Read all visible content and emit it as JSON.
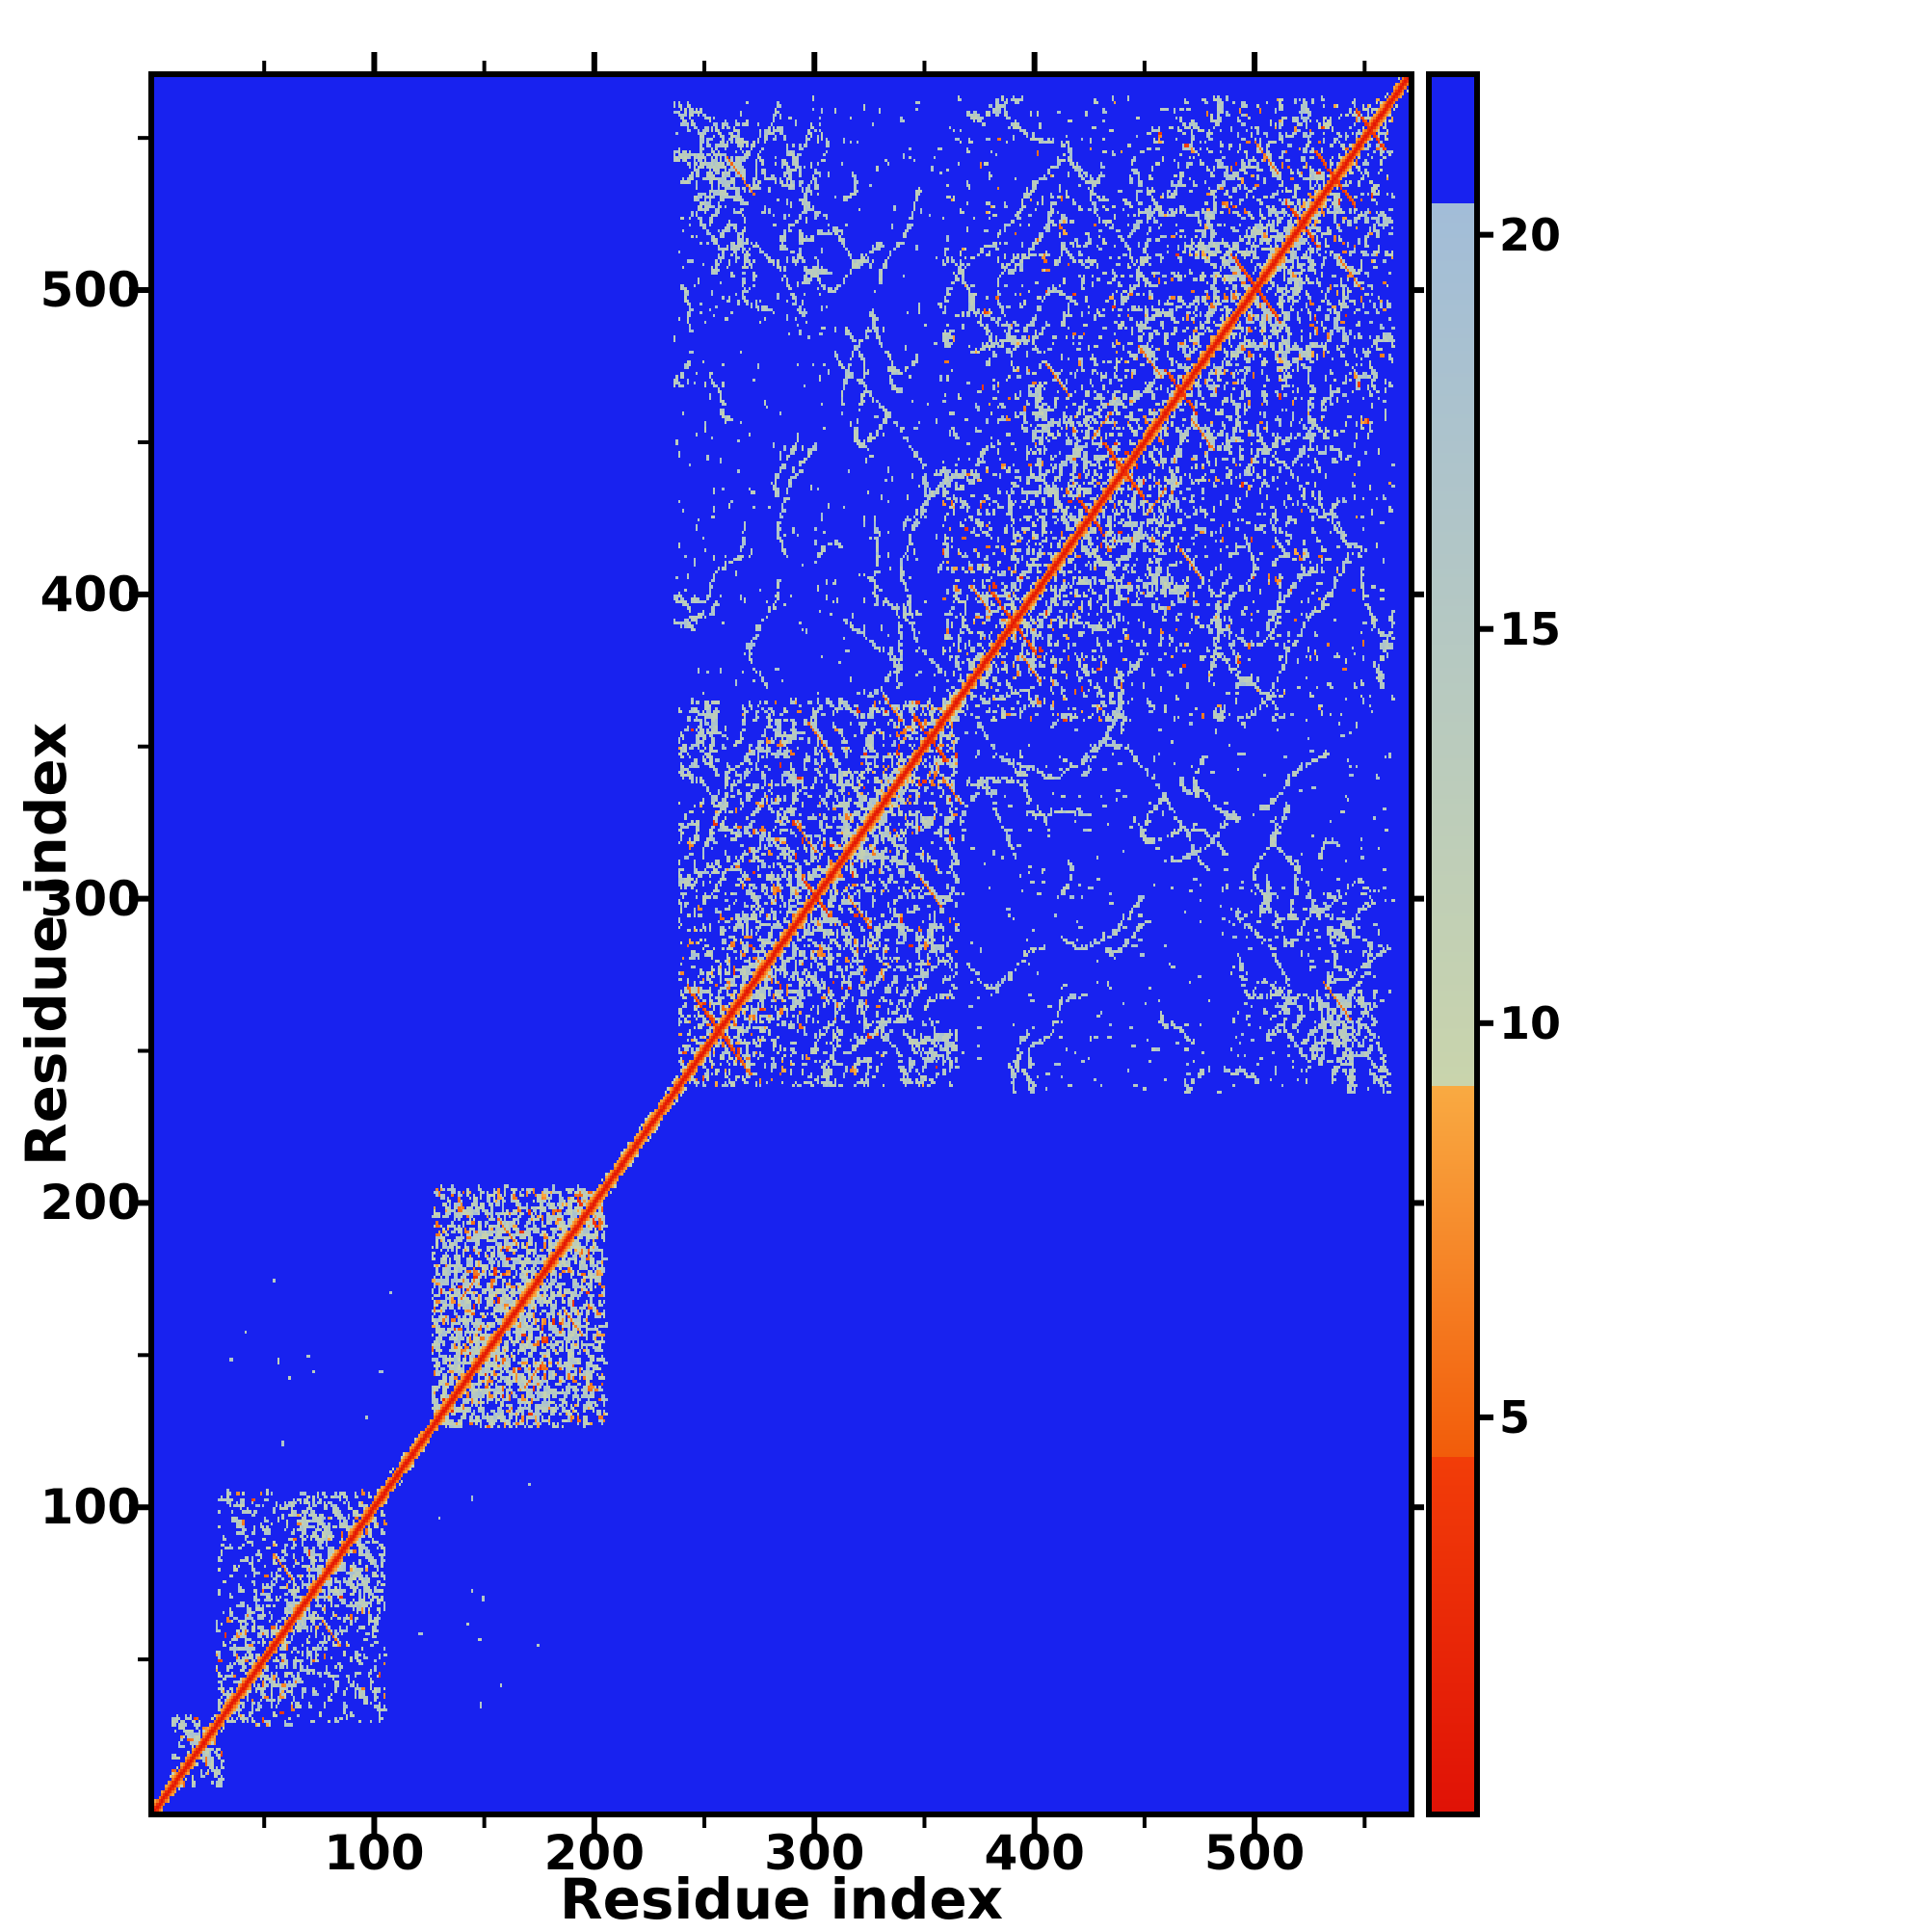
{
  "chart_data": {
    "type": "heatmap",
    "title": "",
    "xlabel": "Residue index",
    "ylabel": "Residue index",
    "x_range": [
      0,
      570
    ],
    "y_range": [
      0,
      570
    ],
    "xticks": [
      100,
      200,
      300,
      400,
      500
    ],
    "yticks": [
      100,
      200,
      300,
      400,
      500
    ],
    "minor_tick_step": 50,
    "colorbar": {
      "vmin": 0,
      "vmax": 22,
      "ticks": [
        5,
        10,
        15,
        20
      ]
    },
    "colormap": [
      {
        "v0": 0,
        "v1": 4.5,
        "c0": "#e01206",
        "c1": "#f23d08"
      },
      {
        "v0": 4.5,
        "v1": 9.2,
        "c0": "#f25c0a",
        "c1": "#f9aa42"
      },
      {
        "v0": 9.2,
        "v1": 20.4,
        "c0": "#c9d4ac",
        "c1": "#a2bdd8"
      },
      {
        "v0": 20.4,
        "v1": 22,
        "c0": "#1822ef",
        "c1": "#1822ef"
      }
    ],
    "background_value": 25,
    "n_residues": 570,
    "seed": 11,
    "diagonal_band": [
      [
        0,
        0.5,
        1
      ],
      [
        1,
        3,
        1
      ],
      [
        2,
        6,
        1
      ],
      [
        3,
        8.7,
        0.55
      ],
      [
        4,
        11,
        0.3
      ]
    ],
    "clusters": [
      {
        "start": 8,
        "end": 30,
        "density": 0.25,
        "spread": 12,
        "filaments": 2
      },
      {
        "start": 28,
        "end": 104,
        "density": 0.3,
        "spread": 26,
        "filaments": 10
      },
      {
        "start": 126,
        "end": 204,
        "density": 0.55,
        "spread": 60,
        "filaments": 8
      },
      {
        "start": 238,
        "end": 364,
        "density": 0.3,
        "spread": 40,
        "filaments": 30
      },
      {
        "start": 358,
        "end": 562,
        "density": 0.2,
        "spread": 50,
        "filaments": 55
      }
    ],
    "cross_blocks": [
      {
        "x0": 366,
        "x1": 560,
        "y0": 236,
        "y1": 360,
        "density": 0.012,
        "filaments": 42
      },
      {
        "x0": 490,
        "x1": 556,
        "y0": 246,
        "y1": 306,
        "density": 0.03,
        "filaments": 8
      },
      {
        "x0": 238,
        "x1": 268,
        "y0": 506,
        "y1": 554,
        "density": 0.03,
        "filaments": 5
      },
      {
        "x0": 236,
        "x1": 562,
        "y0": 236,
        "y1": 562,
        "density": 0.0015,
        "filaments": 0
      },
      {
        "x0": 30,
        "x1": 210,
        "y0": 30,
        "y1": 210,
        "density": 0.0006,
        "filaments": 0
      }
    ],
    "hairpins": [
      {
        "center": 256,
        "half": 14
      },
      {
        "center": 300,
        "half": 6
      },
      {
        "center": 352,
        "half": 7
      },
      {
        "center": 390,
        "half": 11
      },
      {
        "center": 425,
        "half": 6
      },
      {
        "center": 440,
        "half": 9
      },
      {
        "center": 466,
        "half": 7
      },
      {
        "center": 500,
        "half": 11
      },
      {
        "center": 521,
        "half": 7
      },
      {
        "center": 536,
        "half": 9
      },
      {
        "center": 552,
        "half": 6
      }
    ],
    "streaks": [
      {
        "ci": 58,
        "cj": 80,
        "half": 4,
        "dir": "anti"
      },
      {
        "ci": 143,
        "cj": 172,
        "half": 4,
        "dir": "para"
      },
      {
        "ci": 160,
        "cj": 190,
        "half": 4,
        "dir": "anti"
      },
      {
        "ci": 266,
        "cj": 537,
        "half": 6,
        "dir": "anti"
      },
      {
        "ci": 302,
        "cj": 352,
        "half": 5,
        "dir": "anti"
      },
      {
        "ci": 295,
        "cj": 320,
        "half": 5,
        "dir": "anti"
      },
      {
        "ci": 335,
        "cj": 362,
        "half": 4,
        "dir": "anti"
      },
      {
        "ci": 375,
        "cj": 398,
        "half": 4,
        "dir": "anti"
      },
      {
        "ci": 410,
        "cj": 470,
        "half": 5,
        "dir": "anti"
      },
      {
        "ci": 430,
        "cj": 455,
        "half": 4,
        "dir": "para"
      },
      {
        "ci": 452,
        "cj": 476,
        "half": 5,
        "dir": "anti"
      },
      {
        "ci": 505,
        "cj": 543,
        "half": 5,
        "dir": "anti"
      }
    ]
  }
}
